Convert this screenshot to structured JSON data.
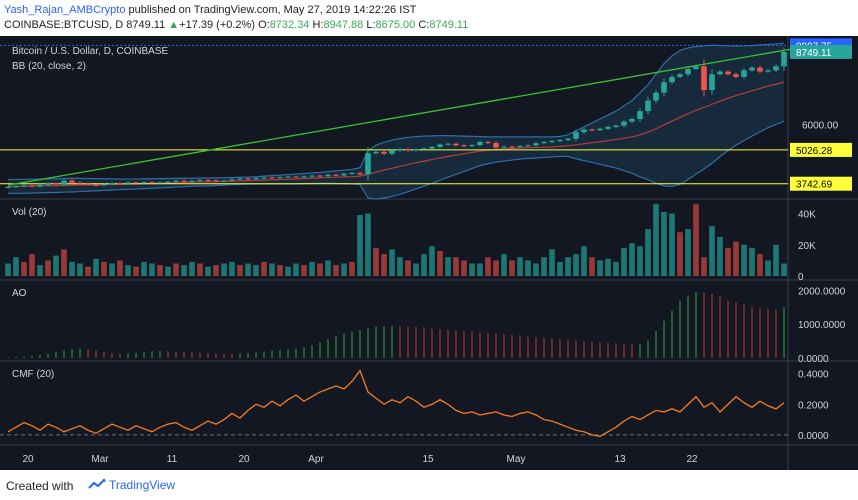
{
  "header": {
    "author": "Yash_Rajan_AMBCrypto",
    "published": "published on TradingView.com, May 27, 2019 14:22:26 IST",
    "symbol": "COINBASE:BTCUSD, D",
    "last": "8749.11",
    "change": "+17.39 (+0.2%)",
    "open_label": "O:",
    "open": "8732.34",
    "high_label": "H:",
    "high": "8947.88",
    "low_label": "L:",
    "low": "8675.00",
    "close_label": "C:",
    "close": "8749.11"
  },
  "footer": {
    "created_with": "Created with",
    "brand": "TradingView"
  },
  "colors": {
    "background": "#131722",
    "up": "#26a69a",
    "down": "#ef5350",
    "cmf": "#f57c20",
    "trend": "#37c42d",
    "level": "#ffff3a",
    "bb_upper": "#2d6ea8",
    "bb_basis": "#b53b3b"
  },
  "chart_data": [
    {
      "type": "candlestick",
      "title": "Bitcoin / U.S. Dollar, D, COINBASE",
      "indicator_label": "BB (20, close, 2)",
      "x_tick_labels": [
        "20",
        "Mar",
        "11",
        "20",
        "Apr",
        "15",
        "May",
        "13",
        "22"
      ],
      "y_tick_labels": [
        "6000.00"
      ],
      "ylim": [
        3200,
        9200
      ],
      "price_markers": [
        {
          "label": "8997.75",
          "value": 8997.75,
          "color": "#2962ff"
        },
        {
          "label": "8749.11",
          "value": 8749.11,
          "color": "#26a69a"
        },
        {
          "label": "5026.28",
          "value": 5026.28,
          "color": "#ffff3a"
        },
        {
          "label": "3742.69",
          "value": 3742.69,
          "color": "#ffff3a"
        }
      ],
      "horizontal_levels": [
        8997.75,
        5026.28,
        3742.69
      ],
      "trendline": [
        [
          0,
          3690
        ],
        [
          98,
          8860
        ]
      ],
      "close": [
        3620,
        3650,
        3680,
        3640,
        3700,
        3750,
        3720,
        3860,
        3780,
        3740,
        3700,
        3680,
        3720,
        3760,
        3740,
        3790,
        3770,
        3800,
        3780,
        3790,
        3820,
        3860,
        3830,
        3850,
        3880,
        3870,
        3840,
        3860,
        3900,
        3940,
        3920,
        3960,
        3980,
        3970,
        3990,
        4010,
        4000,
        4020,
        4050,
        4030,
        4080,
        4060,
        4120,
        4150,
        4100,
        4900,
        4950,
        4880,
        5000,
        5060,
        5010,
        5050,
        5080,
        5140,
        5230,
        5260,
        5200,
        5170,
        5210,
        5330,
        5290,
        5120,
        5150,
        5130,
        5170,
        5200,
        5280,
        5320,
        5360,
        5400,
        5450,
        5700,
        5800,
        5780,
        5830,
        5900,
        5950,
        6100,
        6200,
        6500,
        6900,
        7200,
        7600,
        7800,
        7900,
        8100,
        8200,
        7300,
        7900,
        8000,
        7900,
        7800,
        8050,
        8150,
        8000,
        8050,
        8200,
        8750
      ],
      "bb_upper": [
        3900,
        3905,
        3910,
        3915,
        3920,
        3925,
        3930,
        3940,
        3950,
        3945,
        3940,
        3935,
        3930,
        3925,
        3920,
        3920,
        3920,
        3925,
        3930,
        3935,
        3940,
        3945,
        3950,
        3950,
        3955,
        3960,
        3965,
        3970,
        3975,
        3985,
        3995,
        4010,
        4030,
        4050,
        4070,
        4090,
        4110,
        4130,
        4150,
        4170,
        4200,
        4230,
        4260,
        4290,
        4350,
        5000,
        5200,
        5320,
        5400,
        5460,
        5500,
        5530,
        5550,
        5560,
        5570,
        5570,
        5560,
        5550,
        5540,
        5530,
        5520,
        5520,
        5520,
        5520,
        5520,
        5520,
        5520,
        5520,
        5520,
        5540,
        5600,
        5750,
        5900,
        6050,
        6200,
        6350,
        6500,
        6700,
        6900,
        7200,
        7500,
        7900,
        8300,
        8600,
        8800,
        8900,
        8950,
        8980,
        9000,
        8990,
        8980,
        8970,
        8975,
        8990,
        9010,
        9030,
        9050,
        9080
      ],
      "bb_basis": [
        3640,
        3640,
        3645,
        3650,
        3660,
        3665,
        3670,
        3680,
        3690,
        3695,
        3700,
        3705,
        3710,
        3715,
        3720,
        3725,
        3730,
        3740,
        3750,
        3760,
        3770,
        3780,
        3790,
        3800,
        3805,
        3810,
        3820,
        3830,
        3840,
        3850,
        3860,
        3870,
        3880,
        3890,
        3900,
        3910,
        3920,
        3935,
        3950,
        3965,
        3980,
        3990,
        4000,
        4010,
        4030,
        4100,
        4180,
        4260,
        4330,
        4400,
        4470,
        4540,
        4600,
        4660,
        4720,
        4780,
        4830,
        4880,
        4930,
        4980,
        5010,
        5040,
        5060,
        5080,
        5100,
        5110,
        5120,
        5130,
        5140,
        5160,
        5190,
        5220,
        5260,
        5300,
        5340,
        5380,
        5420,
        5470,
        5520,
        5600,
        5700,
        5830,
        5980,
        6120,
        6260,
        6400,
        6530,
        6640,
        6760,
        6880,
        6990,
        7090,
        7180,
        7270,
        7360,
        7450,
        7520,
        7600
      ],
      "bb_lower": [
        3380,
        3375,
        3380,
        3385,
        3400,
        3405,
        3410,
        3420,
        3430,
        3445,
        3460,
        3475,
        3490,
        3505,
        3520,
        3530,
        3540,
        3555,
        3570,
        3585,
        3600,
        3615,
        3630,
        3650,
        3655,
        3660,
        3675,
        3690,
        3705,
        3715,
        3725,
        3730,
        3730,
        3730,
        3730,
        3730,
        3730,
        3740,
        3750,
        3760,
        3760,
        3750,
        3740,
        3730,
        3710,
        3200,
        3160,
        3200,
        3260,
        3340,
        3440,
        3550,
        3650,
        3760,
        3870,
        3990,
        4100,
        4210,
        4320,
        4430,
        4500,
        4560,
        4600,
        4640,
        4680,
        4700,
        4720,
        4740,
        4760,
        4780,
        4780,
        4690,
        4620,
        4550,
        4480,
        4410,
        4340,
        4240,
        4140,
        4000,
        3900,
        3760,
        3660,
        3640,
        3720,
        3900,
        4110,
        4300,
        4520,
        4770,
        5000,
        5210,
        5385,
        5550,
        5710,
        5870,
        5990,
        6120
      ]
    },
    {
      "type": "bar",
      "title": "Vol (20)",
      "y_tick_labels": [
        "40K",
        "20K",
        "0"
      ],
      "ylim": [
        0,
        48000
      ],
      "values": [
        8000,
        12000,
        9000,
        14000,
        7000,
        10000,
        13000,
        17000,
        9000,
        8000,
        6000,
        11000,
        9000,
        8000,
        10000,
        7000,
        6000,
        9000,
        8000,
        7000,
        6000,
        8000,
        7000,
        9000,
        8000,
        6000,
        7000,
        8000,
        9000,
        7000,
        8000,
        7000,
        9000,
        8000,
        7000,
        6000,
        8000,
        7000,
        9000,
        8000,
        10000,
        7000,
        8000,
        9000,
        39000,
        40000,
        18000,
        14000,
        17000,
        12000,
        10000,
        8000,
        14000,
        19000,
        16000,
        12000,
        12000,
        10000,
        8000,
        8000,
        12000,
        10000,
        14000,
        10000,
        12000,
        10000,
        8000,
        12000,
        17000,
        9000,
        12000,
        14000,
        19000,
        12000,
        10000,
        11000,
        9000,
        18000,
        21000,
        19000,
        30000,
        46000,
        41000,
        40000,
        28000,
        30000,
        46000,
        12000,
        32000,
        25000,
        18000,
        22000,
        20000,
        18000,
        14000,
        10000,
        20000,
        8000
      ],
      "up": [
        1,
        1,
        0,
        0,
        1,
        0,
        1,
        0,
        1,
        1,
        0,
        1,
        0,
        1,
        0,
        1,
        0,
        1,
        1,
        0,
        1,
        0,
        1,
        1,
        0,
        1,
        0,
        1,
        1,
        0,
        1,
        1,
        0,
        1,
        0,
        1,
        1,
        0,
        1,
        0,
        1,
        0,
        1,
        0,
        1,
        1,
        0,
        0,
        1,
        1,
        0,
        1,
        1,
        1,
        0,
        1,
        0,
        0,
        1,
        1,
        0,
        0,
        1,
        0,
        1,
        1,
        1,
        1,
        1,
        1,
        1,
        1,
        1,
        0,
        1,
        1,
        1,
        1,
        1,
        1,
        1,
        1,
        1,
        1,
        0,
        1,
        0,
        0,
        1,
        1,
        0,
        0,
        1,
        1,
        0,
        1,
        1,
        1
      ]
    },
    {
      "type": "bar",
      "title": "AO",
      "y_tick_labels": [
        "2000.0000",
        "1000.0000",
        "0.0000"
      ],
      "ylim": [
        0,
        2250
      ],
      "values": [
        20,
        30,
        40,
        60,
        90,
        130,
        180,
        220,
        260,
        280,
        260,
        220,
        180,
        150,
        130,
        140,
        160,
        180,
        200,
        210,
        200,
        190,
        180,
        170,
        160,
        150,
        140,
        130,
        130,
        140,
        150,
        170,
        190,
        210,
        230,
        250,
        280,
        320,
        380,
        460,
        560,
        650,
        720,
        780,
        830,
        880,
        920,
        940,
        950,
        940,
        930,
        920,
        900,
        880,
        860,
        840,
        820,
        800,
        780,
        760,
        740,
        720,
        700,
        680,
        660,
        640,
        620,
        600,
        580,
        560,
        540,
        520,
        500,
        480,
        460,
        440,
        430,
        420,
        410,
        420,
        520,
        800,
        1100,
        1400,
        1700,
        1850,
        1950,
        1940,
        1900,
        1820,
        1700,
        1650,
        1600,
        1520,
        1480,
        1450,
        1430,
        1500
      ],
      "up": [
        1,
        1,
        1,
        1,
        1,
        1,
        1,
        1,
        1,
        1,
        0,
        0,
        0,
        0,
        0,
        1,
        1,
        1,
        1,
        1,
        0,
        0,
        0,
        0,
        0,
        0,
        0,
        0,
        0,
        1,
        1,
        1,
        1,
        1,
        1,
        1,
        1,
        1,
        1,
        1,
        1,
        1,
        1,
        1,
        1,
        1,
        1,
        1,
        1,
        0,
        0,
        0,
        0,
        0,
        0,
        0,
        0,
        0,
        0,
        0,
        0,
        0,
        0,
        0,
        0,
        0,
        0,
        0,
        0,
        0,
        0,
        0,
        0,
        0,
        0,
        0,
        0,
        0,
        0,
        1,
        1,
        1,
        1,
        1,
        1,
        1,
        1,
        0,
        0,
        0,
        0,
        0,
        0,
        0,
        0,
        0,
        0,
        1
      ]
    },
    {
      "type": "line",
      "title": "CMF (20)",
      "y_tick_labels": [
        "0.4000",
        "0.2000",
        "0.0000"
      ],
      "ylim": [
        -0.06,
        0.47
      ],
      "values": [
        0.02,
        0.05,
        0.08,
        0.06,
        0.03,
        0.07,
        0.05,
        0.02,
        0.04,
        0.06,
        0.03,
        0.01,
        0.04,
        0.07,
        0.05,
        0.03,
        0.06,
        0.04,
        0.02,
        0.05,
        0.07,
        0.08,
        0.05,
        0.03,
        0.06,
        0.09,
        0.07,
        0.1,
        0.14,
        0.11,
        0.16,
        0.2,
        0.18,
        0.22,
        0.19,
        0.23,
        0.26,
        0.22,
        0.25,
        0.28,
        0.3,
        0.32,
        0.3,
        0.35,
        0.42,
        0.28,
        0.24,
        0.2,
        0.23,
        0.21,
        0.25,
        0.22,
        0.18,
        0.2,
        0.23,
        0.2,
        0.16,
        0.14,
        0.15,
        0.13,
        0.14,
        0.15,
        0.13,
        0.12,
        0.14,
        0.15,
        0.13,
        0.1,
        0.09,
        0.07,
        0.05,
        0.03,
        0.02,
        0.0,
        -0.01,
        0.02,
        0.05,
        0.09,
        0.12,
        0.1,
        0.13,
        0.16,
        0.15,
        0.17,
        0.15,
        0.2,
        0.25,
        0.18,
        0.21,
        0.15,
        0.2,
        0.25,
        0.21,
        0.18,
        0.22,
        0.19,
        0.17,
        0.21
      ]
    }
  ]
}
